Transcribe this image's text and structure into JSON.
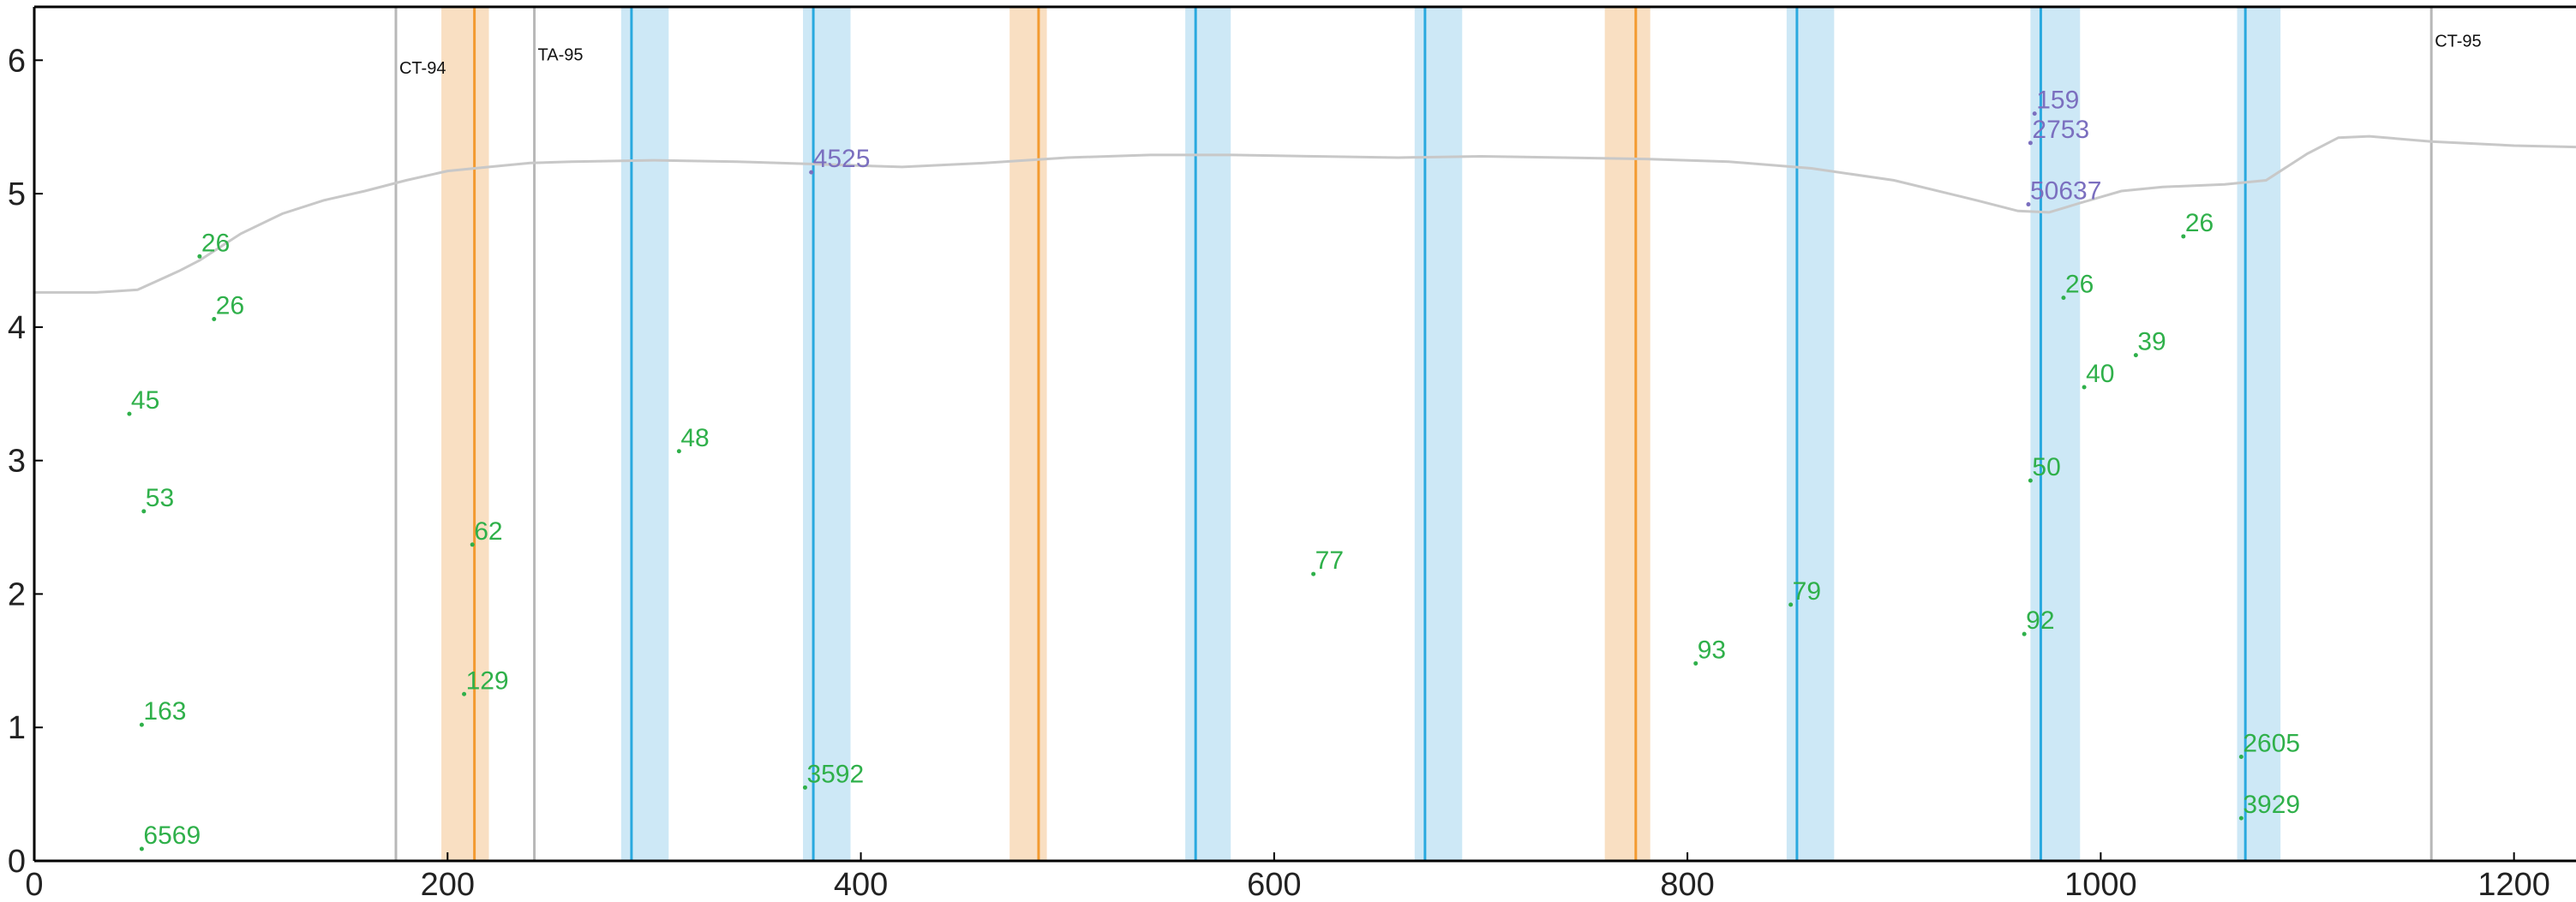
{
  "chart_data": {
    "type": "scatter",
    "title": "",
    "xlabel": "",
    "ylabel": "",
    "xlim": [
      0,
      1230
    ],
    "ylim": [
      0,
      6.4
    ],
    "x_ticks": [
      0,
      200,
      400,
      600,
      800,
      1000,
      1200
    ],
    "y_ticks": [
      0,
      1,
      2,
      3,
      4,
      5,
      6
    ],
    "grid": false,
    "colors": {
      "points_green": "#2fb04a",
      "points_purple": "#7b6fbf",
      "band_orange": "#f9dfc2",
      "line_orange": "#f39a30",
      "band_blue": "#cde8f6",
      "line_blue": "#2aa9df",
      "ref_gray": "#b8b8b8",
      "profile_gray": "#c8c8c8"
    },
    "reference_lines": [
      {
        "x": 175,
        "label": "CT-94",
        "label_y": 5.9
      },
      {
        "x": 242,
        "label": "TA-95",
        "label_y": 6.0
      },
      {
        "x": 1160,
        "label": "CT-95",
        "label_y": 6.1
      }
    ],
    "orange_bands": [
      {
        "x": 213,
        "from": 197,
        "to": 220
      },
      {
        "x": 486,
        "from": 472,
        "to": 490
      },
      {
        "x": 775,
        "from": 760,
        "to": 782
      }
    ],
    "blue_bands": [
      {
        "x": 289,
        "from": 284,
        "to": 307
      },
      {
        "x": 377,
        "from": 372,
        "to": 395
      },
      {
        "x": 562,
        "from": 557,
        "to": 579
      },
      {
        "x": 673,
        "from": 668,
        "to": 691
      },
      {
        "x": 853,
        "from": 848,
        "to": 871
      },
      {
        "x": 971,
        "from": 966,
        "to": 990
      },
      {
        "x": 1070,
        "from": 1066,
        "to": 1087
      }
    ],
    "profile_line": {
      "x": [
        0,
        30,
        50,
        60,
        70,
        80,
        90,
        100,
        120,
        140,
        160,
        180,
        200,
        220,
        240,
        260,
        300,
        340,
        380,
        420,
        460,
        500,
        540,
        580,
        620,
        660,
        700,
        740,
        780,
        820,
        860,
        900,
        940,
        960,
        975,
        990,
        1010,
        1030,
        1060,
        1080,
        1100,
        1115,
        1130,
        1160,
        1200,
        1230
      ],
      "y": [
        4.26,
        4.26,
        4.28,
        4.35,
        4.42,
        4.5,
        4.6,
        4.7,
        4.85,
        4.95,
        5.02,
        5.1,
        5.17,
        5.2,
        5.23,
        5.24,
        5.25,
        5.24,
        5.22,
        5.2,
        5.23,
        5.27,
        5.29,
        5.29,
        5.28,
        5.27,
        5.28,
        5.27,
        5.26,
        5.24,
        5.19,
        5.1,
        4.95,
        4.87,
        4.86,
        4.93,
        5.02,
        5.05,
        5.07,
        5.1,
        5.3,
        5.42,
        5.43,
        5.39,
        5.36,
        5.35
      ]
    },
    "series": [
      {
        "color_key": "points_green",
        "points": [
          {
            "x": 80,
            "y": 4.53,
            "label": "26"
          },
          {
            "x": 87,
            "y": 4.06,
            "label": "26"
          },
          {
            "x": 46,
            "y": 3.35,
            "label": "45"
          },
          {
            "x": 53,
            "y": 2.62,
            "label": "53"
          },
          {
            "x": 52,
            "y": 1.02,
            "label": "163"
          },
          {
            "x": 52,
            "y": 0.09,
            "label": "6569"
          },
          {
            "x": 212,
            "y": 2.37,
            "label": "62"
          },
          {
            "x": 208,
            "y": 1.25,
            "label": "129"
          },
          {
            "x": 312,
            "y": 3.07,
            "label": "48"
          },
          {
            "x": 373,
            "y": 0.55,
            "label": "3592"
          },
          {
            "x": 619,
            "y": 2.15,
            "label": "77"
          },
          {
            "x": 804,
            "y": 1.48,
            "label": "93"
          },
          {
            "x": 850,
            "y": 1.92,
            "label": "79"
          },
          {
            "x": 963,
            "y": 1.7,
            "label": "92"
          },
          {
            "x": 966,
            "y": 2.85,
            "label": "50"
          },
          {
            "x": 992,
            "y": 3.55,
            "label": "40"
          },
          {
            "x": 1017,
            "y": 3.79,
            "label": "39"
          },
          {
            "x": 982,
            "y": 4.22,
            "label": "26"
          },
          {
            "x": 1040,
            "y": 4.68,
            "label": "26"
          },
          {
            "x": 1068,
            "y": 0.78,
            "label": "2605"
          },
          {
            "x": 1068,
            "y": 0.32,
            "label": "3929"
          }
        ]
      },
      {
        "color_key": "points_purple",
        "points": [
          {
            "x": 376,
            "y": 5.16,
            "label": "4525"
          },
          {
            "x": 968,
            "y": 5.6,
            "label": "159"
          },
          {
            "x": 966,
            "y": 5.38,
            "label": "2753"
          },
          {
            "x": 965,
            "y": 4.92,
            "label": "50637"
          }
        ]
      }
    ]
  }
}
